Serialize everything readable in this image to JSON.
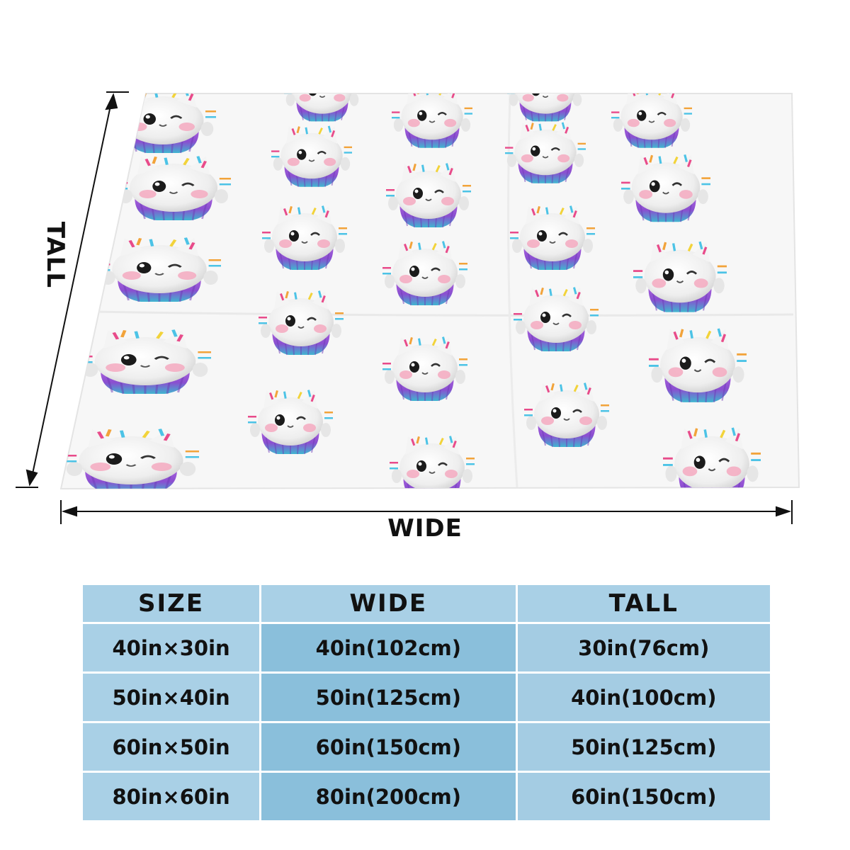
{
  "dimension_labels": {
    "tall": "TALL",
    "wide": "WIDE"
  },
  "colors": {
    "header_bg": "#a9d0e6",
    "col_size_bg": "#a9d0e6",
    "col_wide_bg": "#8abfdb",
    "col_tall_bg": "#a4cce3",
    "cupcake_liner": "#9b5ad6",
    "cupcake_liner_accent": "#3fb6d0"
  },
  "blanket": {
    "pattern": "white cat cupcake characters with rainbow sprinkles on white fleece"
  },
  "size_table": {
    "headers": [
      "SIZE",
      "WIDE",
      "TALL"
    ],
    "rows": [
      {
        "size": "40in×30in",
        "wide": "40in(102cm)",
        "tall": "30in(76cm)"
      },
      {
        "size": "50in×40in",
        "wide": "50in(125cm)",
        "tall": "40in(100cm)"
      },
      {
        "size": "60in×50in",
        "wide": "60in(150cm)",
        "tall": "50in(125cm)"
      },
      {
        "size": "80in×60in",
        "wide": "80in(200cm)",
        "tall": "60in(150cm)"
      }
    ]
  }
}
